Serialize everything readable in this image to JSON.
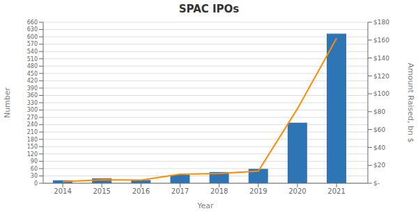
{
  "chart_data": {
    "type": "bar",
    "title": "SPAC IPOs",
    "xlabel": "Year",
    "ylabel": "Number",
    "y2label": "Amount Raised, bn $",
    "x": [
      2014,
      2015,
      2016,
      2017,
      2018,
      2019,
      2020,
      2021
    ],
    "xlim": [
      2013.5,
      2021.8
    ],
    "xticks": [
      2014,
      2015,
      2016,
      2017,
      2018,
      2019,
      2020,
      2021
    ],
    "series": [
      {
        "type": "bar",
        "color": "#2E75B6",
        "values": [
          12,
          20,
          13,
          34,
          46,
          59,
          248,
          613
        ]
      },
      {
        "type": "line",
        "color": "#FF8C00",
        "axis": "y2",
        "values": [
          1.8,
          3.9,
          3.5,
          10.1,
          10.8,
          13.6,
          83.3,
          162.0
        ]
      }
    ],
    "ylim": [
      0,
      660
    ],
    "yticks": [
      0,
      30,
      60,
      90,
      120,
      150,
      180,
      210,
      240,
      270,
      300,
      330,
      360,
      390,
      420,
      450,
      480,
      510,
      540,
      570,
      600,
      630,
      660
    ],
    "y2lim": [
      0,
      180
    ],
    "y2ticks": [
      {
        "value": 0,
        "label": "$-"
      },
      {
        "value": 20,
        "label": "$20"
      },
      {
        "value": 40,
        "label": "$40"
      },
      {
        "value": 60,
        "label": "$60"
      },
      {
        "value": 80,
        "label": "$80"
      },
      {
        "value": 100,
        "label": "$100"
      },
      {
        "value": 120,
        "label": "$120"
      },
      {
        "value": 140,
        "label": "$140"
      },
      {
        "value": 160,
        "label": "$160"
      },
      {
        "value": 180,
        "label": "$180"
      }
    ],
    "grid": true
  }
}
